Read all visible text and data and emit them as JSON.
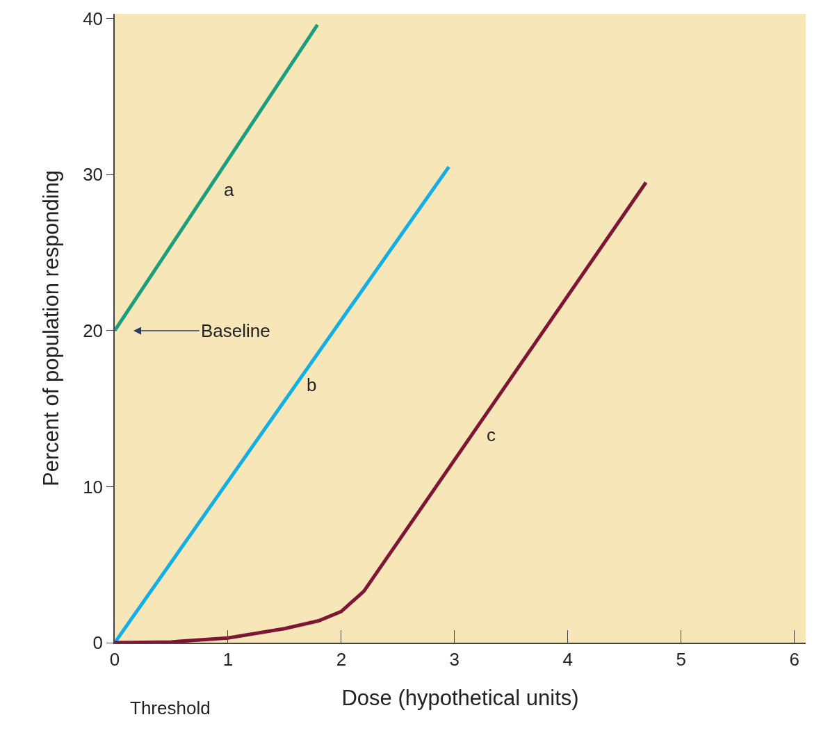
{
  "chart_data": {
    "type": "line",
    "xlabel": "Dose (hypothetical units)",
    "ylabel": "Percent of population responding",
    "xlim": [
      0,
      6.1
    ],
    "xticks": [
      0,
      1,
      2,
      3,
      4,
      5,
      6
    ],
    "ylim": [
      0,
      40.3
    ],
    "yticks": [
      0,
      10,
      20,
      30,
      40
    ],
    "grid": false,
    "marker": "none",
    "line_style": "solid",
    "series": [
      {
        "color": "#1a9e7e",
        "x": [
          0,
          1.79
        ],
        "values": [
          20,
          39.6
        ]
      },
      {
        "color": "#12aee8",
        "x": [
          0,
          2.95
        ],
        "values": [
          0,
          30.5
        ]
      },
      {
        "color": "#7d1634",
        "x": [
          0,
          0.5,
          1,
          1.5,
          1.8,
          2,
          2.2,
          4.69
        ],
        "values": [
          0,
          0.05,
          0.3,
          0.9,
          1.4,
          2.0,
          3.3,
          29.5
        ]
      }
    ],
    "annotations": [
      "Baseline",
      "a",
      "b",
      "c",
      "Threshold"
    ]
  }
}
